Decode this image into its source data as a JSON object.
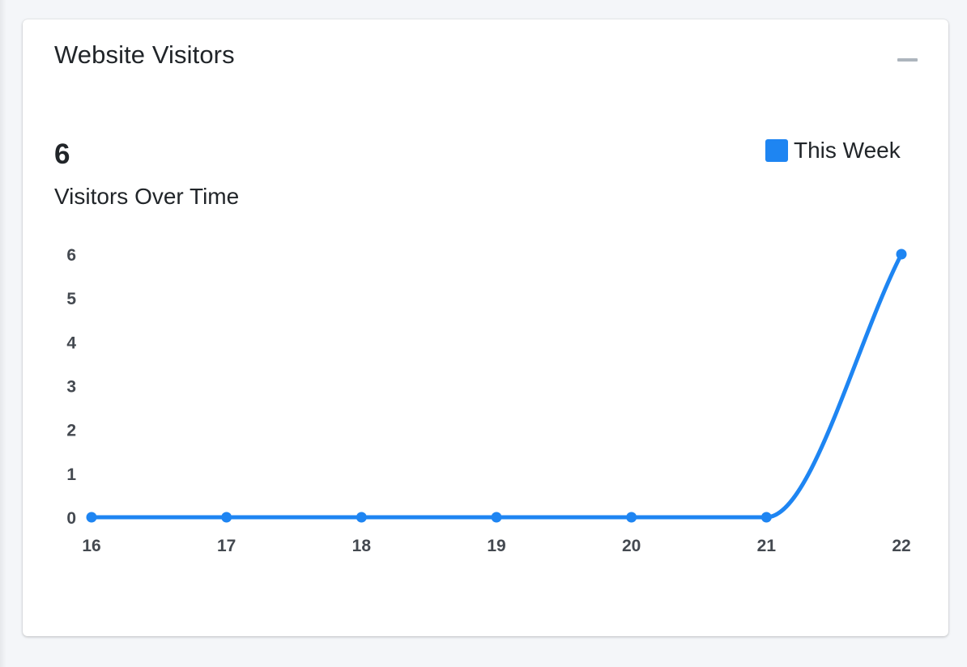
{
  "card": {
    "title": "Website Visitors",
    "collapse_icon": "minus-icon"
  },
  "stat": {
    "value": "6",
    "label": "Visitors Over Time"
  },
  "legend": {
    "label": "This Week",
    "color": "#1e85f2"
  },
  "chart_data": {
    "type": "line",
    "title": "",
    "xlabel": "",
    "ylabel": "",
    "categories": [
      "16",
      "17",
      "18",
      "19",
      "20",
      "21",
      "22"
    ],
    "series": [
      {
        "name": "This Week",
        "values": [
          0,
          0,
          0,
          0,
          0,
          0,
          6
        ],
        "color": "#1e85f2"
      }
    ],
    "ylim": [
      0,
      6
    ],
    "yticks": [
      "0",
      "1",
      "2",
      "3",
      "4",
      "5",
      "6"
    ],
    "grid": false,
    "smooth": true,
    "legend_position": "top-right"
  }
}
